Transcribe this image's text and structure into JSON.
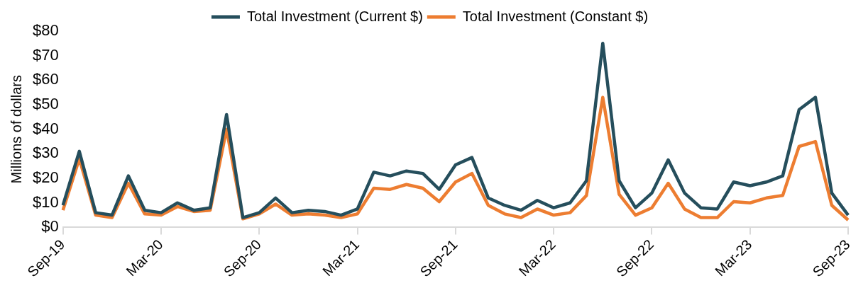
{
  "chart_data": {
    "type": "line",
    "ylabel": "Millions of dollars",
    "categories": [
      "Sep-19",
      null,
      null,
      null,
      null,
      null,
      "Mar-20",
      null,
      null,
      null,
      null,
      null,
      "Sep-20",
      null,
      null,
      null,
      null,
      null,
      "Mar-21",
      null,
      null,
      null,
      null,
      null,
      "Sep-21",
      null,
      null,
      null,
      null,
      null,
      "Mar-22",
      null,
      null,
      null,
      null,
      null,
      "Sep-22",
      null,
      null,
      null,
      null,
      null,
      "Mar-23",
      null,
      null,
      null,
      null,
      null,
      "Sep-23"
    ],
    "series": [
      {
        "name": "Total Investment (Current $)",
        "color": "#254e5c",
        "values": [
          9,
          31,
          6,
          5,
          21,
          7,
          6,
          10,
          7,
          8,
          46,
          4,
          6,
          12,
          6,
          7,
          6.5,
          5,
          7.5,
          22.5,
          21,
          23,
          22,
          15.5,
          25.5,
          28.5,
          12,
          9,
          7,
          11,
          8,
          10,
          19,
          75,
          19,
          8,
          14,
          27.5,
          14,
          8,
          7.5,
          18.5,
          17,
          18.5,
          21,
          48,
          53,
          14,
          5
        ]
      },
      {
        "name": "Total Investment (Constant $)",
        "color": "#ed7d31",
        "values": [
          7,
          28,
          5,
          4,
          18,
          5.5,
          5,
          8.5,
          6.5,
          7,
          40,
          3.5,
          5.5,
          9.5,
          5,
          5.5,
          5,
          4,
          5.5,
          16,
          15.5,
          17.5,
          16,
          10.5,
          18.5,
          22,
          9,
          5.5,
          4,
          7.5,
          5,
          6,
          13,
          53,
          13.5,
          5,
          8,
          18,
          7.5,
          4,
          4,
          10.5,
          10,
          12,
          13,
          33,
          35,
          9,
          3
        ]
      }
    ],
    "ylim": [
      0,
      80
    ],
    "yticks": [
      {
        "value": 0,
        "label": "$0"
      },
      {
        "value": 10,
        "label": "$10"
      },
      {
        "value": 20,
        "label": "$20"
      },
      {
        "value": 30,
        "label": "$30"
      },
      {
        "value": 40,
        "label": "$40"
      },
      {
        "value": 50,
        "label": "$50"
      },
      {
        "value": 60,
        "label": "$60"
      },
      {
        "value": 70,
        "label": "$70"
      },
      {
        "value": 80,
        "label": "$80"
      }
    ],
    "grid": false,
    "legend": "top",
    "marker": "none",
    "line_style": "solid"
  }
}
